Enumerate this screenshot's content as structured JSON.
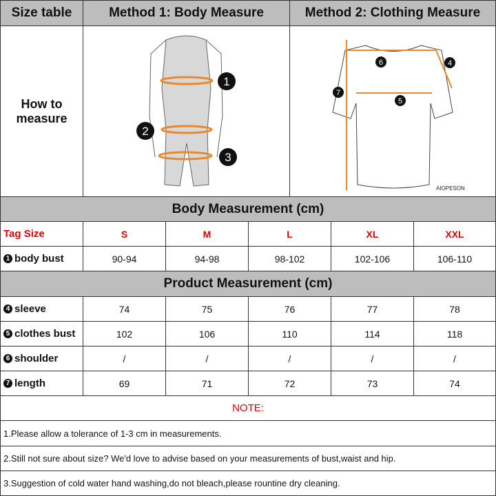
{
  "header": {
    "size_table": "Size table",
    "method1": "Method 1: Body  Measure",
    "method2": "Method 2: Clothing Measure"
  },
  "how_to": "How to measure",
  "figure": {
    "brand": "AIOPESON",
    "body_markers": [
      "1",
      "2",
      "3"
    ],
    "shirt_markers": [
      "4",
      "5",
      "6",
      "7"
    ],
    "line_color": "#e8892c"
  },
  "body_section": "Body Measurement (cm)",
  "tag_label": "Tag Size",
  "sizes": [
    "S",
    "M",
    "L",
    "XL",
    "XXL"
  ],
  "body_rows": [
    {
      "num": "1",
      "label": "body bust",
      "values": [
        "90-94",
        "94-98",
        "98-102",
        "102-106",
        "106-110"
      ]
    }
  ],
  "product_section": "Product Measurement (cm)",
  "product_rows": [
    {
      "num": "4",
      "label": "sleeve",
      "values": [
        "74",
        "75",
        "76",
        "77",
        "78"
      ]
    },
    {
      "num": "5",
      "label": "clothes bust",
      "values": [
        "102",
        "106",
        "110",
        "114",
        "118"
      ]
    },
    {
      "num": "6",
      "label": "shoulder",
      "values": [
        "/",
        "/",
        "/",
        "/",
        "/"
      ]
    },
    {
      "num": "7",
      "label": "length",
      "values": [
        "69",
        "71",
        "72",
        "73",
        "74"
      ]
    }
  ],
  "note_title": "NOTE:",
  "notes": [
    "1.Please allow a tolerance of 1-3 cm in measurements.",
    "2.Still not sure about size? We'd love to advise based on your measurements of bust,waist and hip.",
    "3.Suggestion of cold water hand washing,do not bleach,please rountine dry cleaning."
  ]
}
